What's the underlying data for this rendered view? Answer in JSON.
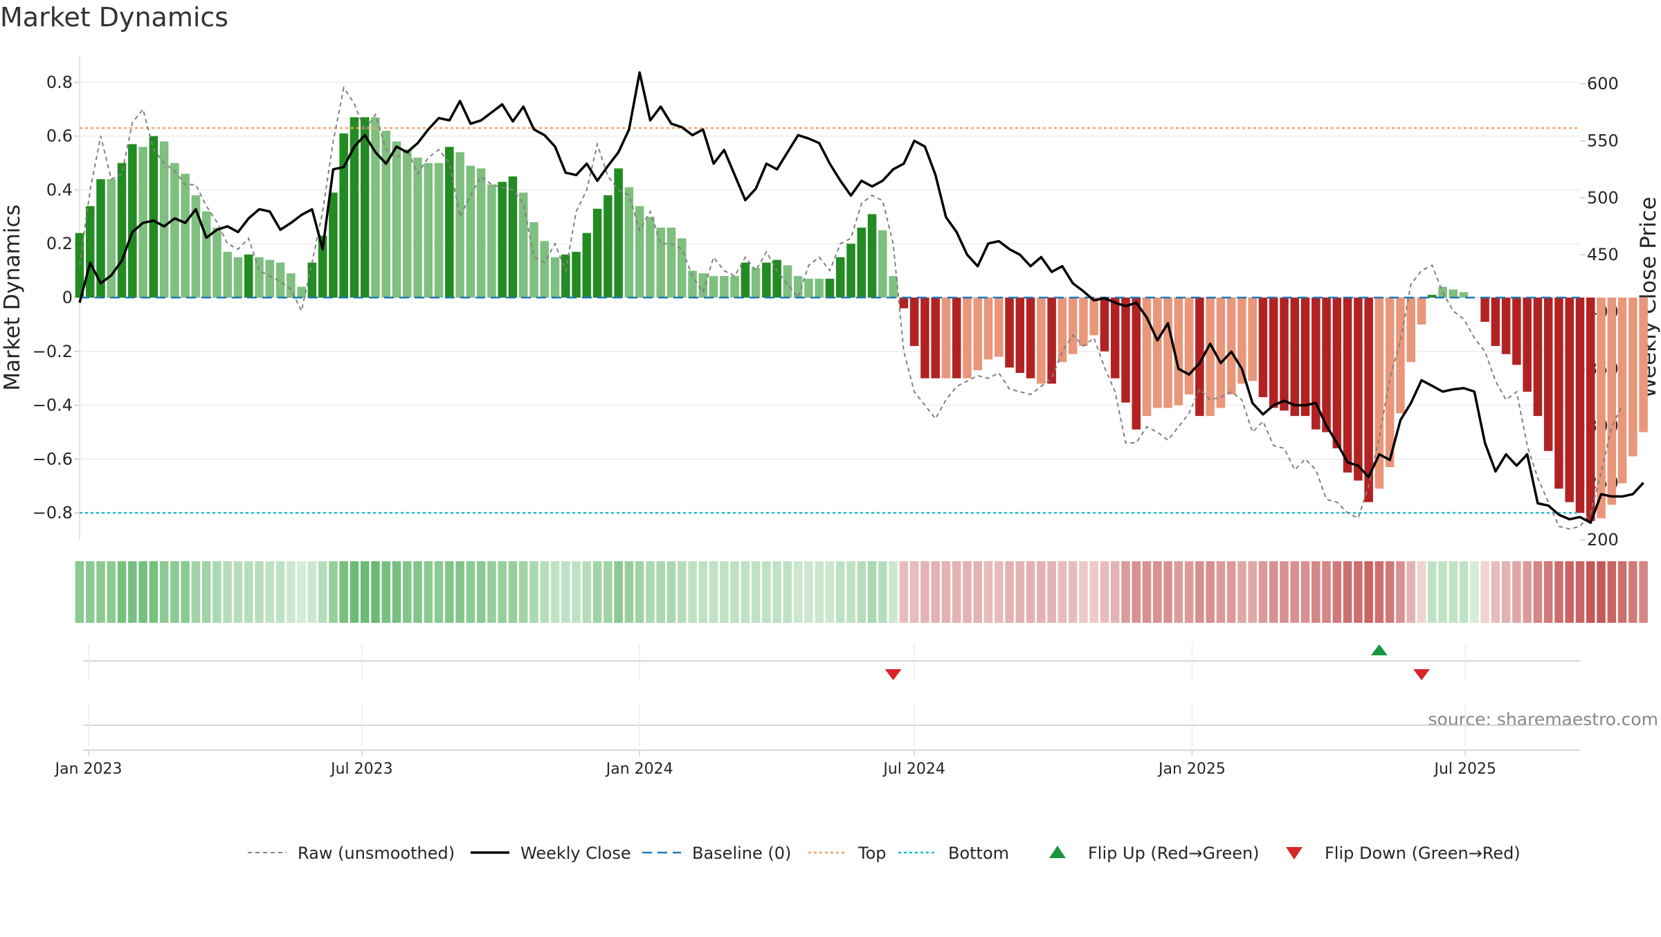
{
  "chart_data": {
    "type": "bar",
    "title": "Market Dynamics",
    "ylabel_left": "Market Dynamics",
    "ylabel_right": "Weekly Close Price",
    "source": "source: sharemaestro.com",
    "ylim_left": [
      -0.9,
      0.9
    ],
    "ylim_right": [
      200,
      625
    ],
    "yticks_left": [
      {
        "v": 0.8,
        "label": "0.8"
      },
      {
        "v": 0.6,
        "label": "0.6"
      },
      {
        "v": 0.4,
        "label": "0.4"
      },
      {
        "v": 0.2,
        "label": "0.2"
      },
      {
        "v": 0,
        "label": "0"
      },
      {
        "v": -0.2,
        "label": "−0.2"
      },
      {
        "v": -0.4,
        "label": "−0.4"
      },
      {
        "v": -0.6,
        "label": "−0.6"
      },
      {
        "v": -0.8,
        "label": "−0.8"
      }
    ],
    "yticks_right": [
      {
        "v": 600,
        "label": "600"
      },
      {
        "v": 550,
        "label": "550"
      },
      {
        "v": 500,
        "label": "500"
      },
      {
        "v": 450,
        "label": "450"
      },
      {
        "v": 400,
        "label": "400"
      },
      {
        "v": 350,
        "label": "350"
      },
      {
        "v": 300,
        "label": "300"
      },
      {
        "v": 250,
        "label": "250"
      },
      {
        "v": 200,
        "label": "200"
      }
    ],
    "x_start": "2022-12-26",
    "x_end": "2025-09-15",
    "x_ticks": [
      {
        "date": "2023-01-01",
        "label": "Jan 2023"
      },
      {
        "date": "2023-07-01",
        "label": "Jul 2023"
      },
      {
        "date": "2024-01-01",
        "label": "Jan 2024"
      },
      {
        "date": "2024-07-01",
        "label": "Jul 2024"
      },
      {
        "date": "2025-01-01",
        "label": "Jan 2025"
      },
      {
        "date": "2025-07-01",
        "label": "Jul 2025"
      }
    ],
    "reference_lines": [
      {
        "name": "Baseline (0)",
        "value": 0,
        "color": "#1f77b4",
        "style": "dashed"
      },
      {
        "name": "Top",
        "value": 0.63,
        "color": "#f4a460",
        "style": "dotted"
      },
      {
        "name": "Bottom",
        "value": -0.8,
        "color": "#17becf",
        "style": "dotted"
      }
    ],
    "first_week": "2022-12-26",
    "series": [
      {
        "name": "Market Dynamics",
        "values": [
          0.24,
          0.34,
          0.44,
          0.44,
          0.5,
          0.57,
          0.56,
          0.6,
          0.58,
          0.5,
          0.46,
          0.38,
          0.32,
          0.26,
          0.17,
          0.15,
          0.16,
          0.15,
          0.14,
          0.13,
          0.09,
          0.04,
          0.13,
          0.23,
          0.39,
          0.61,
          0.67,
          0.67,
          0.67,
          0.62,
          0.58,
          0.55,
          0.52,
          0.5,
          0.5,
          0.56,
          0.54,
          0.49,
          0.48,
          0.42,
          0.43,
          0.45,
          0.39,
          0.28,
          0.21,
          0.15,
          0.16,
          0.17,
          0.24,
          0.33,
          0.38,
          0.48,
          0.41,
          0.34,
          0.3,
          0.26,
          0.26,
          0.22,
          0.1,
          0.09,
          0.08,
          0.08,
          0.08,
          0.13,
          0.11,
          0.13,
          0.14,
          0.12,
          0.08,
          0.07,
          0.07,
          0.07,
          0.15,
          0.2,
          0.26,
          0.31,
          0.25,
          0.08,
          -0.04,
          -0.18,
          -0.3,
          -0.3,
          -0.3,
          -0.3,
          -0.3,
          -0.27,
          -0.23,
          -0.22,
          -0.26,
          -0.28,
          -0.3,
          -0.32,
          -0.32,
          -0.24,
          -0.21,
          -0.18,
          -0.14,
          -0.2,
          -0.3,
          -0.39,
          -0.49,
          -0.44,
          -0.41,
          -0.41,
          -0.4,
          -0.36,
          -0.44,
          -0.44,
          -0.41,
          -0.36,
          -0.32,
          -0.31,
          -0.37,
          -0.41,
          -0.42,
          -0.44,
          -0.44,
          -0.49,
          -0.5,
          -0.56,
          -0.65,
          -0.68,
          -0.76,
          -0.71,
          -0.63,
          -0.43,
          -0.24,
          -0.1,
          0.01,
          0.04,
          0.03,
          0.02,
          0,
          -0.09,
          -0.18,
          -0.21,
          -0.25,
          -0.35,
          -0.44,
          -0.57,
          -0.71,
          -0.76,
          -0.8,
          -0.83,
          -0.82,
          -0.77,
          -0.69,
          -0.59,
          -0.5
        ],
        "colors": [
          "#228b22",
          "#228b22",
          "#228b22",
          "#7fbf7f",
          "#228b22",
          "#228b22",
          "#7fbf7f",
          "#228b22",
          "#7fbf7f",
          "#7fbf7f",
          "#7fbf7f",
          "#7fbf7f",
          "#7fbf7f",
          "#7fbf7f",
          "#7fbf7f",
          "#7fbf7f",
          "#228b22",
          "#7fbf7f",
          "#7fbf7f",
          "#7fbf7f",
          "#7fbf7f",
          "#7fbf7f",
          "#228b22",
          "#228b22",
          "#228b22",
          "#228b22",
          "#228b22",
          "#228b22",
          "#7fbf7f",
          "#7fbf7f",
          "#7fbf7f",
          "#7fbf7f",
          "#7fbf7f",
          "#7fbf7f",
          "#7fbf7f",
          "#228b22",
          "#7fbf7f",
          "#7fbf7f",
          "#7fbf7f",
          "#7fbf7f",
          "#228b22",
          "#228b22",
          "#7fbf7f",
          "#7fbf7f",
          "#7fbf7f",
          "#7fbf7f",
          "#228b22",
          "#228b22",
          "#228b22",
          "#228b22",
          "#228b22",
          "#228b22",
          "#7fbf7f",
          "#7fbf7f",
          "#7fbf7f",
          "#7fbf7f",
          "#7fbf7f",
          "#7fbf7f",
          "#7fbf7f",
          "#7fbf7f",
          "#7fbf7f",
          "#7fbf7f",
          "#7fbf7f",
          "#228b22",
          "#7fbf7f",
          "#228b22",
          "#228b22",
          "#7fbf7f",
          "#7fbf7f",
          "#7fbf7f",
          "#7fbf7f",
          "#228b22",
          "#228b22",
          "#228b22",
          "#228b22",
          "#228b22",
          "#7fbf7f",
          "#7fbf7f",
          "#b22222",
          "#b22222",
          "#b22222",
          "#b22222",
          "#e9967a",
          "#b22222",
          "#e9967a",
          "#e9967a",
          "#e9967a",
          "#e9967a",
          "#b22222",
          "#b22222",
          "#b22222",
          "#e9967a",
          "#b22222",
          "#e9967a",
          "#e9967a",
          "#e9967a",
          "#e9967a",
          "#b22222",
          "#b22222",
          "#b22222",
          "#b22222",
          "#e9967a",
          "#e9967a",
          "#e9967a",
          "#e9967a",
          "#e9967a",
          "#b22222",
          "#e9967a",
          "#e9967a",
          "#e9967a",
          "#e9967a",
          "#e9967a",
          "#b22222",
          "#b22222",
          "#b22222",
          "#b22222",
          "#b22222",
          "#b22222",
          "#b22222",
          "#b22222",
          "#b22222",
          "#b22222",
          "#b22222",
          "#e9967a",
          "#e9967a",
          "#e9967a",
          "#e9967a",
          "#e9967a",
          "#228b22",
          "#7fbf7f",
          "#7fbf7f",
          "#7fbf7f",
          "#7fbf7f",
          "#b22222",
          "#b22222",
          "#b22222",
          "#b22222",
          "#b22222",
          "#b22222",
          "#b22222",
          "#b22222",
          "#b22222",
          "#b22222",
          "#b22222",
          "#e9967a",
          "#e9967a",
          "#e9967a",
          "#e9967a",
          "#e9967a"
        ]
      },
      {
        "name": "Raw (unsmoothed)",
        "axis": "left",
        "color": "#808080",
        "style": "dashed",
        "values": [
          0.12,
          0.4,
          0.6,
          0.44,
          0.46,
          0.65,
          0.7,
          0.55,
          0.5,
          0.47,
          0.42,
          0.42,
          0.34,
          0.28,
          0.2,
          0.18,
          0.22,
          0.1,
          0.08,
          0.06,
          0.03,
          -0.05,
          0.13,
          0.32,
          0.58,
          0.78,
          0.72,
          0.62,
          0.68,
          0.55,
          0.52,
          0.55,
          0.46,
          0.52,
          0.55,
          0.5,
          0.3,
          0.38,
          0.45,
          0.42,
          0.41,
          0.4,
          0.35,
          0.15,
          0.13,
          0.2,
          0.1,
          0.32,
          0.4,
          0.57,
          0.45,
          0.4,
          0.38,
          0.25,
          0.32,
          0.2,
          0.2,
          0.18,
          0.08,
          0.02,
          0.15,
          0.1,
          0.08,
          0.15,
          0.1,
          0.17,
          0.1,
          0.05,
          0,
          0.12,
          0.15,
          0.1,
          0.2,
          0.22,
          0.35,
          0.38,
          0.36,
          0.2,
          -0.2,
          -0.35,
          -0.4,
          -0.45,
          -0.38,
          -0.33,
          -0.31,
          -0.29,
          -0.3,
          -0.28,
          -0.34,
          -0.35,
          -0.36,
          -0.33,
          -0.3,
          -0.2,
          -0.14,
          -0.18,
          -0.15,
          -0.26,
          -0.35,
          -0.54,
          -0.54,
          -0.48,
          -0.5,
          -0.53,
          -0.48,
          -0.43,
          -0.34,
          -0.38,
          -0.37,
          -0.35,
          -0.38,
          -0.5,
          -0.46,
          -0.55,
          -0.56,
          -0.64,
          -0.6,
          -0.64,
          -0.75,
          -0.76,
          -0.8,
          -0.82,
          -0.7,
          -0.52,
          -0.3,
          -0.16,
          0.05,
          0.1,
          0.12,
          0.02,
          -0.05,
          -0.08,
          -0.15,
          -0.2,
          -0.31,
          -0.38,
          -0.35,
          -0.55,
          -0.67,
          -0.76,
          -0.85,
          -0.86,
          -0.85,
          -0.8,
          -0.65,
          -0.48,
          -0.4
        ]
      },
      {
        "name": "Weekly Close",
        "axis": "right",
        "color": "#000000",
        "style": "solid",
        "values": [
          408,
          443,
          425,
          432,
          445,
          470,
          478,
          480,
          475,
          482,
          478,
          490,
          465,
          472,
          475,
          470,
          482,
          490,
          488,
          472,
          478,
          485,
          490,
          455,
          525,
          527,
          545,
          555,
          540,
          530,
          545,
          540,
          548,
          560,
          570,
          568,
          585,
          565,
          568,
          575,
          582,
          567,
          580,
          560,
          555,
          545,
          522,
          520,
          530,
          515,
          528,
          540,
          560,
          610,
          568,
          580,
          565,
          562,
          555,
          560,
          530,
          542,
          520,
          498,
          508,
          530,
          525,
          540,
          555,
          552,
          548,
          530,
          515,
          502,
          515,
          510,
          515,
          525,
          530,
          550,
          545,
          520,
          483,
          470,
          450,
          440,
          460,
          462,
          455,
          450,
          440,
          448,
          435,
          440,
          425,
          418,
          410,
          412,
          408,
          405,
          408,
          395,
          375,
          390,
          350,
          345,
          355,
          372,
          355,
          365,
          350,
          320,
          310,
          318,
          322,
          318,
          318,
          320,
          300,
          285,
          268,
          265,
          255,
          275,
          270,
          305,
          320,
          340,
          335,
          330,
          332,
          333,
          330,
          285,
          260,
          275,
          265,
          275,
          232,
          230,
          222,
          218,
          220,
          215,
          240,
          238,
          238,
          240,
          250
        ]
      }
    ],
    "strip": {
      "alphas": [
        0.55,
        0.55,
        0.55,
        0.55,
        0.65,
        0.65,
        0.65,
        0.65,
        0.55,
        0.55,
        0.55,
        0.45,
        0.45,
        0.4,
        0.35,
        0.35,
        0.35,
        0.35,
        0.3,
        0.3,
        0.25,
        0.2,
        0.25,
        0.35,
        0.5,
        0.65,
        0.7,
        0.7,
        0.7,
        0.65,
        0.65,
        0.6,
        0.6,
        0.55,
        0.55,
        0.6,
        0.6,
        0.55,
        0.55,
        0.5,
        0.5,
        0.5,
        0.45,
        0.4,
        0.35,
        0.3,
        0.3,
        0.3,
        0.35,
        0.45,
        0.45,
        0.55,
        0.5,
        0.45,
        0.4,
        0.4,
        0.4,
        0.35,
        0.3,
        0.3,
        0.3,
        0.3,
        0.3,
        0.3,
        0.3,
        0.3,
        0.3,
        0.3,
        0.25,
        0.25,
        0.25,
        0.25,
        0.3,
        0.3,
        0.35,
        0.4,
        0.35,
        0.25,
        0.3,
        0.3,
        0.35,
        0.35,
        0.35,
        0.35,
        0.35,
        0.35,
        0.3,
        0.3,
        0.35,
        0.35,
        0.35,
        0.35,
        0.35,
        0.3,
        0.3,
        0.25,
        0.25,
        0.3,
        0.35,
        0.45,
        0.5,
        0.5,
        0.5,
        0.5,
        0.45,
        0.45,
        0.5,
        0.5,
        0.45,
        0.45,
        0.4,
        0.4,
        0.45,
        0.5,
        0.5,
        0.5,
        0.5,
        0.55,
        0.55,
        0.6,
        0.65,
        0.65,
        0.7,
        0.65,
        0.6,
        0.5,
        0.35,
        0.2,
        0.3,
        0.3,
        0.3,
        0.3,
        0.2,
        0.2,
        0.3,
        0.35,
        0.4,
        0.45,
        0.55,
        0.6,
        0.65,
        0.7,
        0.7,
        0.75,
        0.75,
        0.7,
        0.65,
        0.6,
        0.55
      ]
    },
    "flip_up": [
      {
        "date": "2025-05-05"
      }
    ],
    "flip_down": [
      {
        "date": "2024-06-17"
      },
      {
        "date": "2025-06-02"
      }
    ],
    "legend": [
      {
        "label": "Raw (unsmoothed)",
        "kind": "line",
        "color": "#808080",
        "dash": "6,5",
        "width": 2
      },
      {
        "label": "Weekly Close",
        "kind": "line",
        "color": "#000000",
        "dash": "",
        "width": 3.5
      },
      {
        "label": "Baseline (0)",
        "kind": "line",
        "color": "#1f77b4",
        "dash": "14,8",
        "width": 2.5
      },
      {
        "label": "Top",
        "kind": "line",
        "color": "#f4a460",
        "dash": "4,4",
        "width": 2.5
      },
      {
        "label": "Bottom",
        "kind": "line",
        "color": "#17becf",
        "dash": "4,4",
        "width": 2.5
      },
      {
        "label": "Flip Up (Red→Green)",
        "kind": "tri-up",
        "color": "#1a9641"
      },
      {
        "label": "Flip Down (Green→Red)",
        "kind": "tri-down",
        "color": "#d62728"
      }
    ]
  }
}
